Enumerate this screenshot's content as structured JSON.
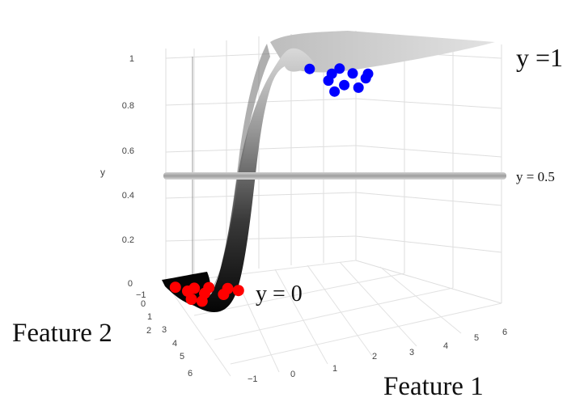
{
  "chart_data": {
    "type": "surface",
    "axes": {
      "x": {
        "label": "Feature 1",
        "ticks": [
          "−1",
          "0",
          "1",
          "2",
          "3",
          "4",
          "5",
          "6"
        ]
      },
      "y": {
        "label": "y",
        "ticks": [
          "0",
          "0.2",
          "0.4",
          "0.6",
          "0.8",
          "1"
        ]
      },
      "z": {
        "label": "Feature 2",
        "ticks": [
          "−1",
          "0",
          "1",
          "2",
          "3",
          "4",
          "5",
          "6"
        ]
      }
    },
    "surface": "sigmoid",
    "threshold": {
      "value": 0.5,
      "label": "y = 0.5"
    },
    "annotations": {
      "y1": "y =1",
      "y0": "y = 0"
    },
    "series": [
      {
        "class": 0,
        "color": "#ff0000",
        "points": [
          [
            0.2,
            0.5,
            0
          ],
          [
            0.5,
            1,
            0
          ],
          [
            0.8,
            0.8,
            0
          ],
          [
            1,
            1.4,
            0
          ],
          [
            1.3,
            0.9,
            0
          ],
          [
            1.6,
            1.7,
            0
          ],
          [
            0.4,
            1.8,
            0
          ],
          [
            1.9,
            1.2,
            0
          ],
          [
            2.2,
            1.5,
            0
          ],
          [
            0.7,
            2.1,
            0
          ]
        ]
      },
      {
        "class": 1,
        "color": "#0000ff",
        "points": [
          [
            4.2,
            3.5,
            1
          ],
          [
            4.8,
            4.2,
            1
          ],
          [
            5.2,
            3.8,
            1
          ],
          [
            4.5,
            4.8,
            1
          ],
          [
            5.5,
            4.4,
            1
          ],
          [
            5.8,
            5,
            1
          ],
          [
            4.9,
            5.4,
            1
          ],
          [
            5.3,
            5.8,
            1
          ],
          [
            6,
            4.6,
            1
          ],
          [
            4.4,
            5.9,
            1
          ]
        ]
      }
    ],
    "grid": true,
    "colors": {
      "surface_dark": "#0a0a0a",
      "surface_light": "#d8d8d8",
      "grid": "#dddddd",
      "threshold": "#c8c8c8"
    }
  }
}
